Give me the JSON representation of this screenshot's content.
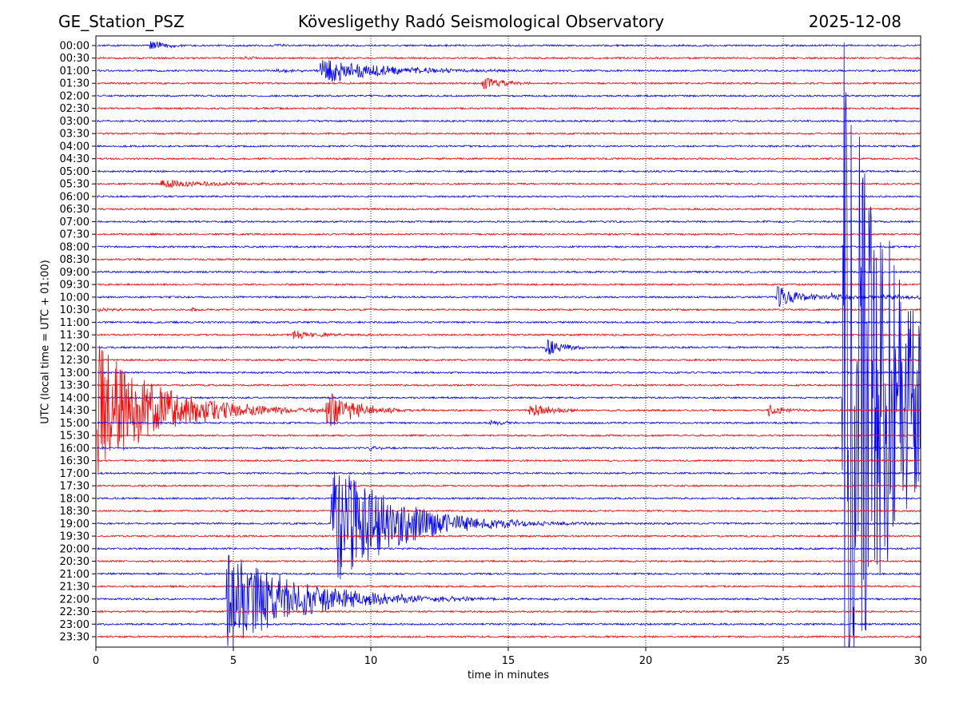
{
  "chart_data": {
    "type": "line",
    "title_left": "GE_Station_PSZ",
    "title": "Kövesligethy Radó Seismological Observatory",
    "title_right": "2025-12-08",
    "xlabel": "time in minutes",
    "ylabel": "UTC (local time = UTC + 01:00)",
    "xlim": [
      0,
      30
    ],
    "xticks": [
      "0",
      "5",
      "10",
      "15",
      "20",
      "25",
      "30"
    ],
    "grid": "vertical dotted at x ticks",
    "trace_labels": [
      "00:00",
      "00:30",
      "01:00",
      "01:30",
      "02:00",
      "02:30",
      "03:00",
      "03:30",
      "04:00",
      "04:30",
      "05:00",
      "05:30",
      "06:00",
      "06:30",
      "07:00",
      "07:30",
      "08:00",
      "08:30",
      "09:00",
      "09:30",
      "10:00",
      "10:30",
      "11:00",
      "11:30",
      "12:00",
      "12:30",
      "13:00",
      "13:30",
      "14:00",
      "14:30",
      "15:00",
      "15:30",
      "16:00",
      "16:30",
      "17:00",
      "17:30",
      "18:00",
      "18:30",
      "19:00",
      "19:30",
      "20:00",
      "20:30",
      "21:00",
      "21:30",
      "22:00",
      "22:30",
      "23:00",
      "23:30"
    ],
    "colors": [
      "#0000ff",
      "#ff0000"
    ],
    "noise_level": 0.07,
    "events": [
      {
        "trace": "00:00",
        "start_min": 1.9,
        "amplitude": 0.45,
        "decay_min": 0.6
      },
      {
        "trace": "00:00",
        "start_min": 6.3,
        "amplitude": 0.15,
        "decay_min": 0.4
      },
      {
        "trace": "00:30",
        "start_min": 5.3,
        "amplitude": 0.2,
        "decay_min": 0.3
      },
      {
        "trace": "01:00",
        "start_min": 6.5,
        "amplitude": 0.12,
        "decay_min": 1.5
      },
      {
        "trace": "01:00",
        "start_min": 8.1,
        "amplitude": 1.1,
        "decay_min": 2.2
      },
      {
        "trace": "01:30",
        "start_min": 14.0,
        "amplitude": 0.55,
        "decay_min": 0.7
      },
      {
        "trace": "05:30",
        "start_min": 2.3,
        "amplitude": 0.35,
        "decay_min": 1.8
      },
      {
        "trace": "10:00",
        "start_min": 24.7,
        "amplitude": 0.9,
        "decay_min": 1.0
      },
      {
        "trace": "10:00",
        "start_min": 26.5,
        "amplitude": 0.2,
        "decay_min": 6
      },
      {
        "trace": "10:30",
        "start_min": 0.0,
        "amplitude": 0.15,
        "decay_min": 1.0
      },
      {
        "trace": "10:30",
        "start_min": 3.4,
        "amplitude": 0.25,
        "decay_min": 0.3
      },
      {
        "trace": "11:30",
        "start_min": 7.1,
        "amplitude": 0.35,
        "decay_min": 1.0
      },
      {
        "trace": "12:00",
        "start_min": 16.3,
        "amplitude": 0.8,
        "decay_min": 0.6
      },
      {
        "trace": "14:00",
        "start_min": 27.1,
        "amplitude": 30,
        "decay_min": 2.0
      },
      {
        "trace": "14:30",
        "start_min": 0.0,
        "amplitude": 5.5,
        "decay_min": 2.2
      },
      {
        "trace": "14:30",
        "start_min": 8.3,
        "amplitude": 1.8,
        "decay_min": 1.0
      },
      {
        "trace": "14:30",
        "start_min": 15.7,
        "amplitude": 0.7,
        "decay_min": 0.8
      },
      {
        "trace": "14:30",
        "start_min": 24.4,
        "amplitude": 0.5,
        "decay_min": 0.6
      },
      {
        "trace": "15:00",
        "start_min": 14.3,
        "amplitude": 0.25,
        "decay_min": 0.5
      },
      {
        "trace": "16:00",
        "start_min": 9.9,
        "amplitude": 0.25,
        "decay_min": 0.3
      },
      {
        "trace": "19:00",
        "start_min": 8.5,
        "amplitude": 5.5,
        "decay_min": 2.2
      },
      {
        "trace": "22:00",
        "start_min": 4.7,
        "amplitude": 4.2,
        "decay_min": 2.5
      }
    ]
  }
}
